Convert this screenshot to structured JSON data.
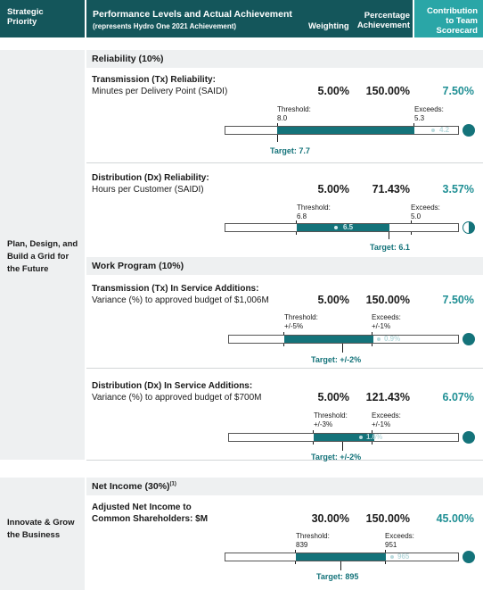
{
  "header": {
    "strategic_priority": "Strategic Priority",
    "performance_title": "Performance Levels and Actual Achievement",
    "performance_sub": "(represents Hydro One 2021 Achievement)",
    "weighting": "Weighting",
    "percentage": "Percentage Achievement",
    "contribution": "Contribution to Team Scorecard"
  },
  "priorities": [
    "Plan, Design, and Build a Grid for the Future",
    "Innovate & Grow the Business"
  ],
  "sections": {
    "reliability": "Reliability (10%)",
    "work_program": "Work Program (10%)",
    "net_income": "Net Income (30%)",
    "net_income_note": "(1)"
  },
  "colors": {
    "header": "#14565b",
    "accent": "#2aa6a7",
    "bar_fill": "#14737a",
    "achievement_dot": "#b9dadd"
  },
  "metrics": [
    {
      "title": "Transmission (Tx) Reliability:",
      "subtitle": "Minutes per Delivery Point (SAIDI)",
      "weighting": "5.00%",
      "percentage": "150.00%",
      "contribution": "7.50%",
      "threshold_label": "Threshold:",
      "threshold": "8.0",
      "exceeds_label": "Exceeds:",
      "exceeds": "5.3",
      "achievement": "4.2",
      "target": "Target: 7.7",
      "indicator": "full-circle-icon",
      "fill_fraction": 1.0
    },
    {
      "title": "Distribution (Dx) Reliability:",
      "subtitle": "Hours per Customer (SAIDI)",
      "weighting": "5.00%",
      "percentage": "71.43%",
      "contribution": "3.57%",
      "threshold_label": "Threshold:",
      "threshold": "6.8",
      "exceeds_label": "Exceeds:",
      "exceeds": "5.0",
      "achievement": "6.5",
      "target": "Target: 6.1",
      "indicator": "half-circle-icon",
      "fill_fraction": 0.7143
    },
    {
      "title": "Transmission (Tx) In Service Additions:",
      "subtitle": "Variance (%) to approved budget of $1,006M",
      "weighting": "5.00%",
      "percentage": "150.00%",
      "contribution": "7.50%",
      "threshold_label": "Threshold:",
      "threshold": "+/-5%",
      "exceeds_label": "Exceeds:",
      "exceeds": "+/-1%",
      "achievement": "0.9%",
      "target": "Target: +/-2%",
      "indicator": "full-circle-icon",
      "fill_fraction": 1.0
    },
    {
      "title": "Distribution (Dx) In Service Additions:",
      "subtitle": "Variance (%) to approved budget of $700M",
      "weighting": "5.00%",
      "percentage": "121.43%",
      "contribution": "6.07%",
      "threshold_label": "Threshold:",
      "threshold": "+/-3%",
      "exceeds_label": "Exceeds:",
      "exceeds": "+/-1%",
      "achievement": "1.6%",
      "target": "Target: +/-2%",
      "indicator": "full-circle-icon",
      "fill_fraction": 1.0
    },
    {
      "title": "Adjusted Net Income to",
      "title2": "Common Shareholders: $M",
      "weighting": "30.00%",
      "percentage": "150.00%",
      "contribution": "45.00%",
      "threshold_label": "Threshold:",
      "threshold": "839",
      "exceeds_label": "Exceeds:",
      "exceeds": "951",
      "achievement": "965",
      "target": "Target: 895",
      "indicator": "full-circle-icon",
      "fill_fraction": 1.0
    }
  ]
}
